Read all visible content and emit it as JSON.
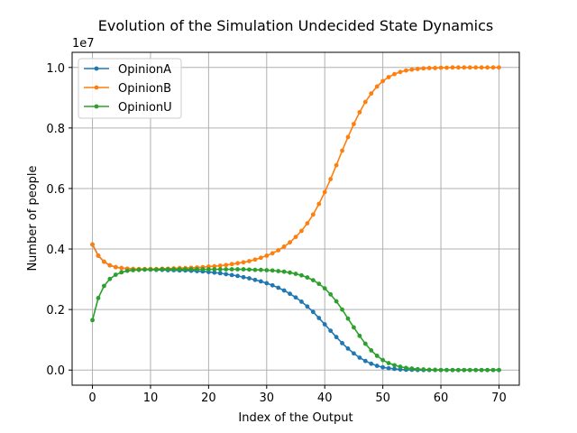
{
  "chart_data": {
    "type": "line",
    "title": "Evolution of the Simulation Undecided State Dynamics",
    "xlabel": "Index of the Output",
    "ylabel": "Number of people",
    "y_offset_label": "1e7",
    "xlim": [
      -3.5,
      73.5
    ],
    "ylim": [
      -0.05,
      1.05
    ],
    "x_ticks": [
      0,
      10,
      20,
      30,
      40,
      50,
      60,
      70
    ],
    "x_tick_labels": [
      "0",
      "10",
      "20",
      "30",
      "40",
      "50",
      "60",
      "70"
    ],
    "y_ticks": [
      0.0,
      0.2,
      0.4,
      0.6,
      0.8,
      1.0
    ],
    "y_tick_labels": [
      "0.0",
      "0.2",
      "0.4",
      "0.6",
      "0.8",
      "1.0"
    ],
    "grid": true,
    "legend_position": "top-left",
    "x": [
      0,
      1,
      2,
      3,
      4,
      5,
      6,
      7,
      8,
      9,
      10,
      11,
      12,
      13,
      14,
      15,
      16,
      17,
      18,
      19,
      20,
      21,
      22,
      23,
      24,
      25,
      26,
      27,
      28,
      29,
      30,
      31,
      32,
      33,
      34,
      35,
      36,
      37,
      38,
      39,
      40,
      41,
      42,
      43,
      44,
      45,
      46,
      47,
      48,
      49,
      50,
      51,
      52,
      53,
      54,
      55,
      56,
      57,
      58,
      59,
      60,
      61,
      62,
      63,
      64,
      65,
      66,
      67,
      68,
      69,
      70
    ],
    "series": [
      {
        "name": "OpinionA",
        "color": "#1f77b4",
        "values": [
          0.415,
          0.378,
          0.358,
          0.346,
          0.34,
          0.337,
          0.335,
          0.334,
          0.333,
          0.332,
          0.332,
          0.331,
          0.331,
          0.33,
          0.33,
          0.329,
          0.329,
          0.328,
          0.327,
          0.326,
          0.324,
          0.322,
          0.32,
          0.317,
          0.314,
          0.311,
          0.307,
          0.303,
          0.298,
          0.293,
          0.287,
          0.28,
          0.272,
          0.263,
          0.252,
          0.24,
          0.226,
          0.21,
          0.192,
          0.172,
          0.151,
          0.13,
          0.109,
          0.089,
          0.071,
          0.055,
          0.041,
          0.03,
          0.021,
          0.014,
          0.009,
          0.006,
          0.004,
          0.002,
          0.001,
          0.001,
          0.0,
          0.0,
          0.0,
          0.0,
          0.0,
          0.0,
          0.0,
          0.0,
          0.0,
          0.0,
          0.0,
          0.0,
          0.0,
          0.0,
          0.0
        ]
      },
      {
        "name": "OpinionB",
        "color": "#ff7f0e",
        "values": [
          0.415,
          0.378,
          0.358,
          0.346,
          0.34,
          0.337,
          0.335,
          0.334,
          0.334,
          0.334,
          0.334,
          0.334,
          0.335,
          0.335,
          0.336,
          0.337,
          0.337,
          0.338,
          0.339,
          0.34,
          0.342,
          0.343,
          0.345,
          0.347,
          0.35,
          0.353,
          0.356,
          0.36,
          0.365,
          0.371,
          0.378,
          0.386,
          0.396,
          0.408,
          0.422,
          0.44,
          0.46,
          0.485,
          0.514,
          0.549,
          0.588,
          0.631,
          0.677,
          0.725,
          0.77,
          0.813,
          0.852,
          0.886,
          0.914,
          0.937,
          0.955,
          0.968,
          0.978,
          0.985,
          0.99,
          0.993,
          0.995,
          0.997,
          0.998,
          0.998,
          0.999,
          0.999,
          1.0,
          1.0,
          1.0,
          1.0,
          1.0,
          1.0,
          1.0,
          1.0,
          1.0
        ]
      },
      {
        "name": "OpinionU",
        "color": "#2ca02c",
        "values": [
          0.165,
          0.238,
          0.278,
          0.301,
          0.315,
          0.323,
          0.328,
          0.33,
          0.331,
          0.332,
          0.332,
          0.332,
          0.333,
          0.333,
          0.333,
          0.333,
          0.333,
          0.333,
          0.333,
          0.333,
          0.333,
          0.333,
          0.333,
          0.333,
          0.333,
          0.333,
          0.333,
          0.332,
          0.331,
          0.331,
          0.33,
          0.329,
          0.327,
          0.325,
          0.322,
          0.318,
          0.313,
          0.306,
          0.297,
          0.285,
          0.27,
          0.25,
          0.227,
          0.2,
          0.17,
          0.141,
          0.113,
          0.087,
          0.065,
          0.047,
          0.033,
          0.023,
          0.016,
          0.011,
          0.007,
          0.005,
          0.003,
          0.002,
          0.001,
          0.001,
          0.0,
          0.0,
          0.0,
          0.0,
          0.0,
          0.0,
          0.0,
          0.0,
          0.0,
          0.0,
          0.0
        ]
      }
    ]
  }
}
